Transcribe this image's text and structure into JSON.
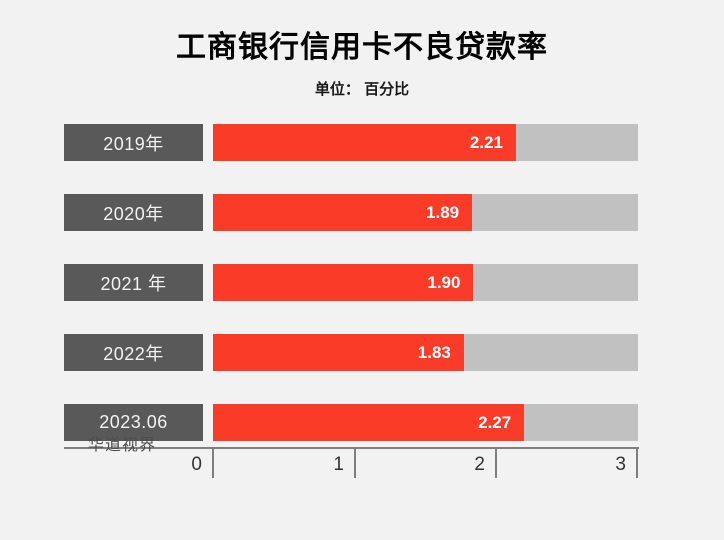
{
  "page": {
    "background": "#f2f2f2"
  },
  "header": {
    "title": "工商银行信用卡不良贷款率",
    "subtitle": "单位： 百分比"
  },
  "watermark": "华道视界",
  "colors": {
    "bar_fill": "#fa3b28",
    "bar_track": "#c1c1c1",
    "category_box": "#595959",
    "category_text": "#f2f2f2",
    "value_text": "#ffffff",
    "axis": "#7f7f7f",
    "tick_label": "#333333",
    "watermark_text": "#4d4d4d"
  },
  "chart_data": {
    "type": "bar",
    "orientation": "horizontal",
    "title": "工商银行信用卡不良贷款率",
    "subtitle": "单位： 百分比",
    "categories": [
      "2019年",
      "2020年",
      "2021 年",
      "2022年",
      "2023.06"
    ],
    "values": [
      2.21,
      1.89,
      1.9,
      1.83,
      2.27
    ],
    "value_labels": [
      "2.21",
      "1.89",
      "1.90",
      "1.83",
      "2.27"
    ],
    "xlabel": "",
    "ylabel": "",
    "xlim": [
      0,
      3
    ],
    "x_ticks": [
      0,
      1,
      2,
      3
    ],
    "track_max": 3.1,
    "grid": false,
    "legend": false
  }
}
